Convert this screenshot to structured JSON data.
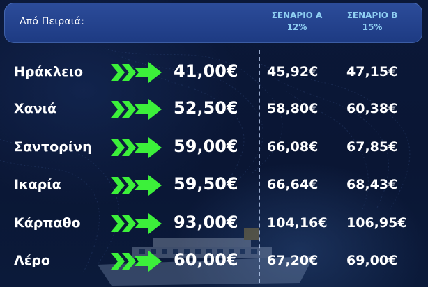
{
  "header": {
    "from_label": "Από Πειραιά:",
    "scenario_a": {
      "name": "ΣΕΝΑΡΙΟ Α",
      "pct": "12%"
    },
    "scenario_b": {
      "name": "ΣΕΝΑΡΙΟ Β",
      "pct": "15%"
    }
  },
  "colors": {
    "header_bg": "#1d3a82",
    "scenario_text": "#8fcff2",
    "arrow_green": "#3cf03a",
    "background": "#0a1430",
    "text": "#ffffff"
  },
  "icons": {
    "row_arrow": "double-chevron-arrow-icon"
  },
  "rows": [
    {
      "destination": "Ηράκλειο",
      "price": "41,00€",
      "scenario_a": "45,92€",
      "scenario_b": "47,15€"
    },
    {
      "destination": "Χανιά",
      "price": "52,50€",
      "scenario_a": "58,80€",
      "scenario_b": "60,38€"
    },
    {
      "destination": "Σαντορίνη",
      "price": "59,00€",
      "scenario_a": "66,08€",
      "scenario_b": "67,85€"
    },
    {
      "destination": "Ικαρία",
      "price": "59,50€",
      "scenario_a": "66,64€",
      "scenario_b": "68,43€"
    },
    {
      "destination": "Κάρπαθο",
      "price": "93,00€",
      "scenario_a": "104,16€",
      "scenario_b": "106,95€"
    },
    {
      "destination": "Λέρο",
      "price": "60,00€",
      "scenario_a": "67,20€",
      "scenario_b": "69,00€"
    }
  ]
}
